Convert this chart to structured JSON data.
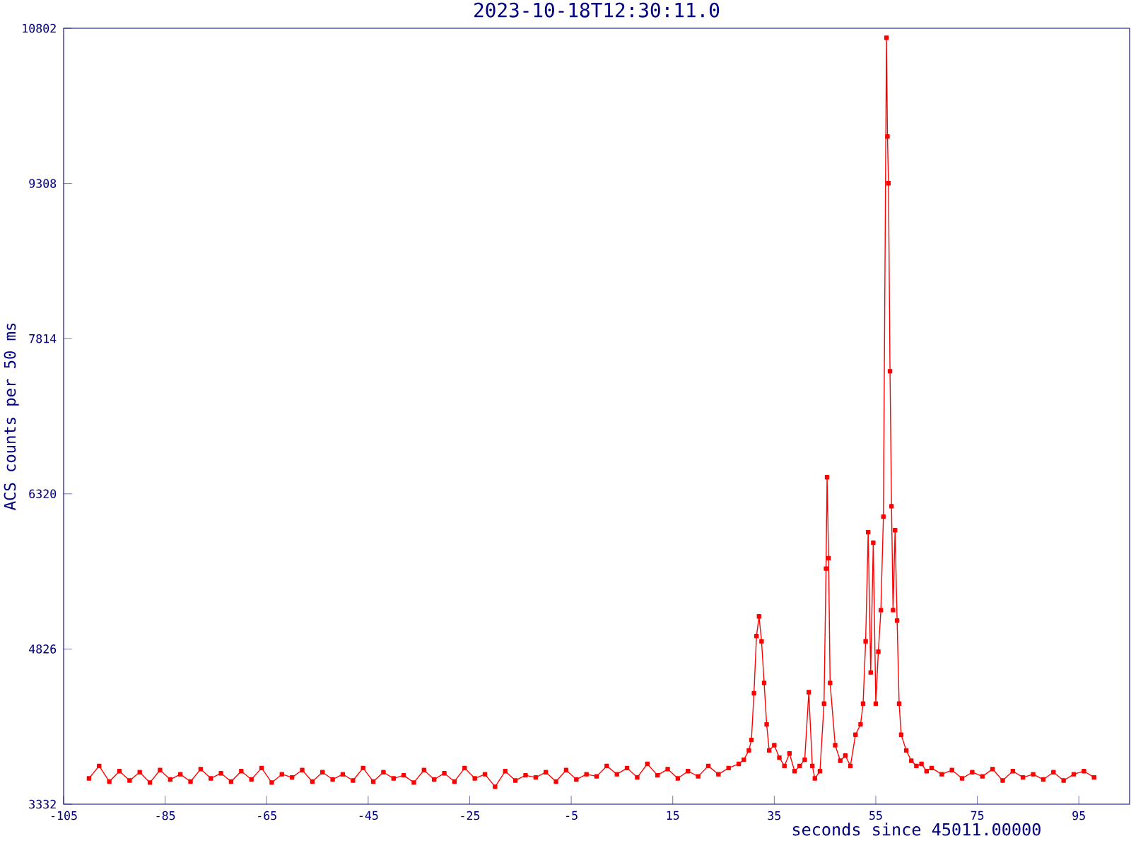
{
  "chart_data": {
    "type": "line",
    "title": "2023-10-18T12:30:11.0",
    "xlabel": "seconds since 45011.00000",
    "ylabel": "ACS counts per 50 ms",
    "xlim": [
      -105,
      105
    ],
    "ylim": [
      3332,
      10802
    ],
    "xticks": [
      -105,
      -85,
      -65,
      -45,
      -25,
      -5,
      15,
      35,
      55,
      75,
      95
    ],
    "yticks": [
      3332,
      4826,
      6320,
      7814,
      9308,
      10802
    ],
    "marker": "square",
    "grid": false,
    "series": [
      {
        "color": "#ff0000",
        "x": [
          -100,
          -98,
          -96,
          -94,
          -92,
          -90,
          -88,
          -86,
          -84,
          -82,
          -80,
          -78,
          -76,
          -74,
          -72,
          -70,
          -68,
          -66,
          -64,
          -62,
          -60,
          -58,
          -56,
          -54,
          -52,
          -50,
          -48,
          -46,
          -44,
          -42,
          -40,
          -38,
          -36,
          -34,
          -32,
          -30,
          -28,
          -26,
          -24,
          -22,
          -20,
          -18,
          -16,
          -14,
          -12,
          -10,
          -8,
          -6,
          -4,
          -2,
          0,
          2,
          4,
          6,
          8,
          10,
          12,
          14,
          16,
          18,
          20,
          22,
          24,
          26,
          28,
          29,
          30,
          30.5,
          31,
          31.5,
          32,
          32.5,
          33,
          33.5,
          34,
          35,
          36,
          37,
          38,
          39,
          40,
          41,
          41.8,
          42.5,
          43,
          44,
          44.8,
          45.2,
          45.4,
          45.7,
          46,
          47,
          48,
          49,
          50,
          51,
          52,
          52.5,
          53,
          53.5,
          54,
          54.5,
          55,
          55.5,
          56,
          56.5,
          57.1,
          57.3,
          57.5,
          57.8,
          58.1,
          58.4,
          58.8,
          59.2,
          59.6,
          60,
          61,
          62,
          63,
          64,
          65,
          66,
          68,
          70,
          72,
          74,
          76,
          78,
          80,
          82,
          84,
          86,
          88,
          90,
          92,
          94,
          96,
          98
        ],
        "values": [
          3580,
          3700,
          3550,
          3650,
          3560,
          3640,
          3540,
          3660,
          3570,
          3620,
          3550,
          3670,
          3580,
          3630,
          3550,
          3650,
          3570,
          3680,
          3540,
          3620,
          3590,
          3660,
          3550,
          3640,
          3570,
          3620,
          3560,
          3680,
          3550,
          3640,
          3580,
          3610,
          3540,
          3660,
          3570,
          3630,
          3550,
          3680,
          3580,
          3620,
          3500,
          3650,
          3560,
          3610,
          3590,
          3640,
          3550,
          3660,
          3570,
          3620,
          3600,
          3700,
          3620,
          3680,
          3590,
          3720,
          3610,
          3670,
          3580,
          3650,
          3600,
          3700,
          3620,
          3680,
          3720,
          3760,
          3850,
          3950,
          4400,
          4950,
          5140,
          4900,
          4500,
          4100,
          3850,
          3900,
          3780,
          3700,
          3820,
          3650,
          3700,
          3760,
          4410,
          3700,
          3580,
          3650,
          4300,
          5600,
          6480,
          5700,
          4500,
          3900,
          3750,
          3800,
          3700,
          4000,
          4100,
          4300,
          4900,
          5950,
          4600,
          5850,
          4300,
          4800,
          5200,
          6100,
          10710,
          9760,
          9310,
          7500,
          6200,
          5200,
          5970,
          5100,
          4300,
          4000,
          3850,
          3750,
          3700,
          3720,
          3650,
          3680,
          3620,
          3660,
          3580,
          3640,
          3600,
          3670,
          3560,
          3650,
          3590,
          3620,
          3570,
          3640,
          3560,
          3620,
          3650,
          3590
        ]
      }
    ]
  }
}
